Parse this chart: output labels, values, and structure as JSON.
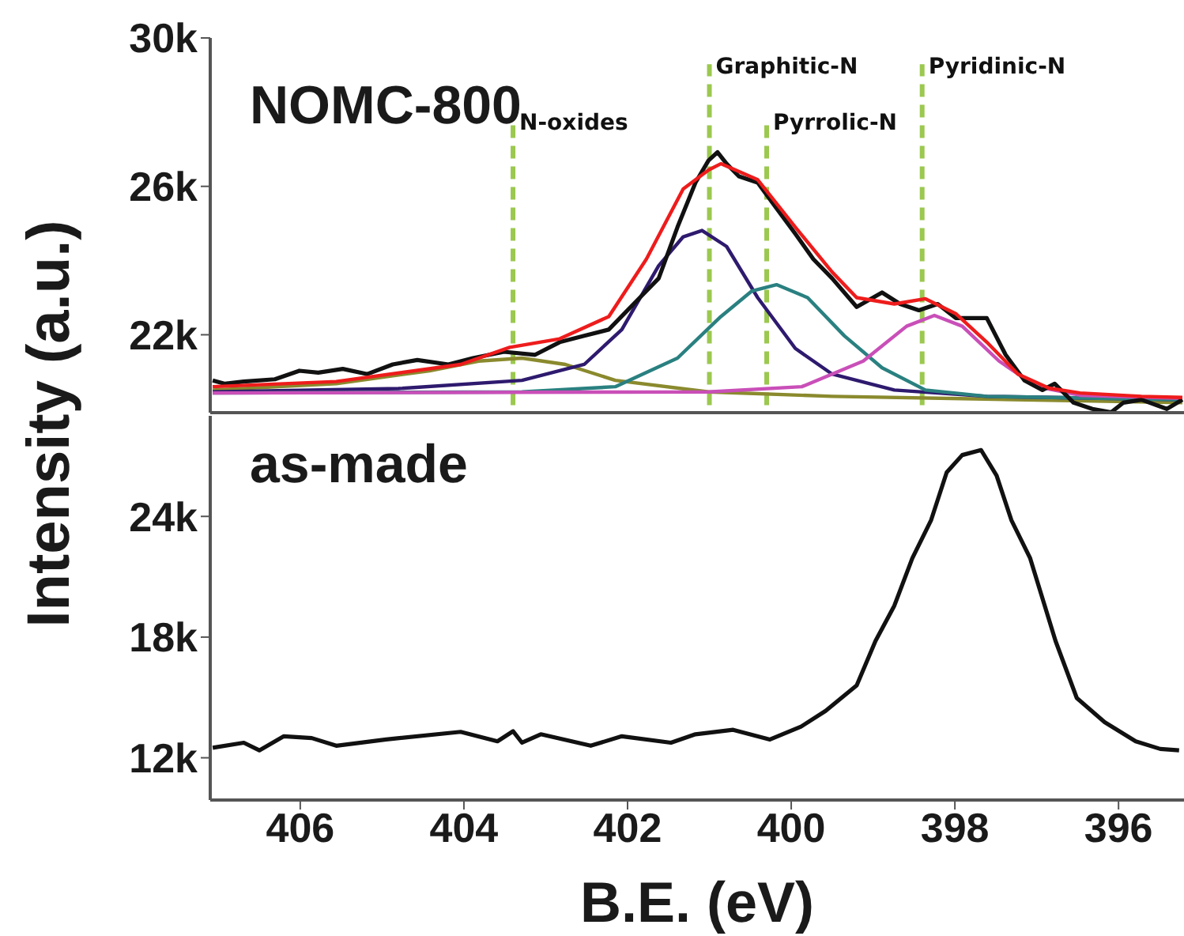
{
  "chart_data": [
    {
      "type": "line",
      "title": "NOMC-800",
      "ylabel": "Intensity (a.u.)",
      "xlim": [
        407.1,
        395.2
      ],
      "xticks": [
        406,
        404,
        402,
        400,
        398,
        396
      ],
      "ylim": [
        19.9,
        30
      ],
      "yticks": [
        {
          "value": 22,
          "label": "22k"
        },
        {
          "value": 26,
          "label": "26k"
        },
        {
          "value": 30,
          "label": "30k"
        }
      ],
      "tick_labels": "y",
      "ref_lines": [
        {
          "axis": "x",
          "value": 403.4,
          "label": "N-oxides",
          "color": "#9bc84f",
          "line_style": "dashed"
        },
        {
          "axis": "x",
          "value": 401.0,
          "label": "Graphitic-N",
          "color": "#9bc84f",
          "line_style": "dashed"
        },
        {
          "axis": "x",
          "value": 400.3,
          "label": "Pyrrolic-N",
          "color": "#9bc84f",
          "line_style": "dashed"
        },
        {
          "axis": "x",
          "value": 398.4,
          "label": "Pyridinic-N",
          "color": "#9bc84f",
          "line_style": "dashed"
        }
      ],
      "series": [
        {
          "color": "#8a8a2e",
          "x": [
            407.07,
            405.56,
            404.42,
            403.82,
            403.29,
            402.76,
            402.15,
            401.01,
            399.5,
            395.22
          ],
          "values": [
            20.51,
            20.68,
            21.03,
            21.29,
            21.37,
            21.2,
            20.77,
            20.46,
            20.34,
            20.17
          ]
        },
        {
          "color": "#2e1a6e",
          "x": [
            407.07,
            404.8,
            403.29,
            402.53,
            402.07,
            401.62,
            401.32,
            401.09,
            400.79,
            400.41,
            399.95,
            399.5,
            398.74,
            397.61,
            395.22
          ],
          "values": [
            20.46,
            20.55,
            20.77,
            21.2,
            22.14,
            23.86,
            24.64,
            24.81,
            24.38,
            23.0,
            21.63,
            20.94,
            20.51,
            20.34,
            20.25
          ]
        },
        {
          "color": "#2a8080",
          "x": [
            407.07,
            403.29,
            402.15,
            401.39,
            400.86,
            400.48,
            400.18,
            399.8,
            399.35,
            398.89,
            398.36,
            397.61,
            395.22
          ],
          "values": [
            20.43,
            20.46,
            20.6,
            21.37,
            22.49,
            23.18,
            23.35,
            23.0,
            21.97,
            21.11,
            20.51,
            20.34,
            20.25
          ]
        },
        {
          "color": "#c94fb8",
          "x": [
            407.07,
            401.01,
            399.87,
            399.12,
            398.59,
            398.25,
            397.91,
            397.46,
            397.0,
            396.47,
            395.22
          ],
          "values": [
            20.43,
            20.46,
            20.6,
            21.29,
            22.23,
            22.52,
            22.23,
            21.29,
            20.6,
            20.37,
            20.29
          ]
        },
        {
          "color": "#111111",
          "x": [
            407.07,
            406.92,
            406.69,
            406.31,
            406.01,
            405.78,
            405.48,
            405.18,
            404.87,
            404.57,
            404.19,
            403.89,
            403.51,
            403.13,
            402.83,
            402.53,
            402.23,
            401.85,
            401.62,
            401.39,
            401.17,
            401.01,
            400.9,
            400.79,
            400.64,
            400.41,
            400.18,
            399.95,
            399.73,
            399.5,
            399.2,
            398.89,
            398.67,
            398.44,
            398.21,
            397.99,
            397.61,
            397.38,
            397.15,
            396.93,
            396.78,
            396.55,
            396.32,
            396.09,
            395.94,
            395.72,
            395.41,
            395.22
          ],
          "values": [
            20.77,
            20.68,
            20.74,
            20.8,
            21.03,
            20.98,
            21.08,
            20.94,
            21.2,
            21.32,
            21.2,
            21.37,
            21.54,
            21.46,
            21.8,
            21.97,
            22.14,
            23.0,
            23.52,
            24.9,
            26.1,
            26.7,
            26.92,
            26.61,
            26.27,
            26.1,
            25.41,
            24.72,
            24.04,
            23.52,
            22.75,
            23.14,
            22.83,
            22.66,
            22.83,
            22.45,
            22.45,
            21.46,
            20.77,
            20.51,
            20.68,
            20.17,
            20.0,
            19.91,
            20.17,
            20.25,
            20.0,
            20.25
          ]
        },
        {
          "color": "#ee1c1c",
          "x": [
            407.07,
            405.56,
            404.04,
            403.44,
            402.83,
            402.23,
            401.77,
            401.32,
            401.01,
            400.86,
            400.41,
            399.95,
            399.5,
            399.2,
            398.74,
            398.36,
            397.99,
            397.61,
            397.23,
            396.85,
            396.47,
            395.72,
            395.22
          ],
          "values": [
            20.6,
            20.74,
            21.2,
            21.66,
            21.89,
            22.49,
            24.04,
            25.93,
            26.44,
            26.61,
            26.18,
            24.9,
            23.69,
            23.0,
            22.83,
            22.97,
            22.57,
            21.8,
            20.94,
            20.56,
            20.43,
            20.34,
            20.31
          ]
        }
      ]
    },
    {
      "type": "line",
      "title": "as-made",
      "xlabel": "B.E. (eV)",
      "xlim": [
        407.1,
        395.2
      ],
      "xticks": [
        406,
        404,
        402,
        400,
        398,
        396
      ],
      "ylim": [
        9.9,
        29
      ],
      "yticks": [
        {
          "value": 12,
          "label": "12k"
        },
        {
          "value": 18,
          "label": "18k"
        },
        {
          "value": 24,
          "label": "24k"
        }
      ],
      "series": [
        {
          "color": "#111111",
          "x": [
            407.07,
            406.69,
            406.5,
            406.2,
            405.86,
            405.56,
            404.95,
            404.04,
            403.59,
            403.4,
            403.29,
            403.06,
            402.45,
            402.07,
            401.47,
            401.17,
            400.71,
            400.26,
            399.88,
            399.58,
            399.2,
            398.97,
            398.74,
            398.52,
            398.29,
            398.1,
            397.91,
            397.68,
            397.49,
            397.31,
            397.08,
            396.77,
            396.51,
            396.17,
            395.79,
            395.49,
            395.26
          ],
          "values": [
            12.5,
            12.75,
            12.37,
            13.07,
            12.98,
            12.6,
            12.91,
            13.29,
            12.82,
            13.32,
            12.75,
            13.17,
            12.6,
            13.07,
            12.75,
            13.17,
            13.39,
            12.91,
            13.55,
            14.33,
            15.6,
            17.81,
            19.56,
            21.92,
            23.82,
            26.19,
            27.05,
            27.3,
            26.03,
            23.82,
            21.92,
            17.81,
            14.97,
            13.77,
            12.82,
            12.44,
            12.37
          ]
        }
      ]
    }
  ]
}
